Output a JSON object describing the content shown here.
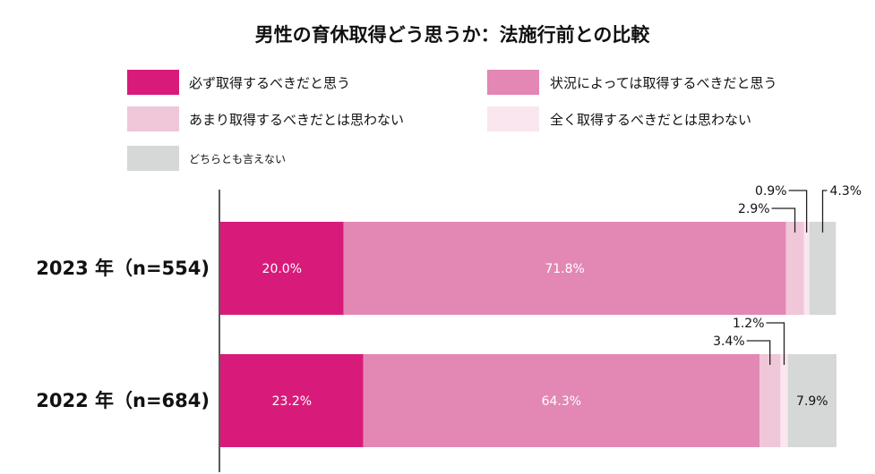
{
  "chart_data": {
    "type": "bar",
    "orientation": "horizontal",
    "stacked": true,
    "title": "男性の育休取得どう思うか：法施行前との比較",
    "categories": [
      "2023 年（n=554)",
      "2022 年（n=684)"
    ],
    "series": [
      {
        "name": "必ず取得するべきだと思う",
        "color": "#d81b7a",
        "values": [
          20.0,
          23.2
        ],
        "labels": [
          "20.0%",
          "23.2%"
        ]
      },
      {
        "name": "状況によっては取得するべきだと思う",
        "color": "#e387b4",
        "values": [
          71.8,
          64.3
        ],
        "labels": [
          "71.8%",
          "64.3%"
        ]
      },
      {
        "name": "あまり取得するべきだとは思わない",
        "color": "#f0c6d9",
        "values": [
          2.9,
          3.4
        ],
        "labels": [
          "2.9%",
          "3.4%"
        ]
      },
      {
        "name": "全く取得するべきだとは思わない",
        "color": "#f9e6ee",
        "values": [
          0.9,
          1.2
        ],
        "labels": [
          "0.9%",
          "1.2%"
        ]
      },
      {
        "name": "どちらとも言えない",
        "color": "#d6d7d7",
        "values": [
          4.3,
          7.9
        ],
        "labels": [
          "4.3%",
          "7.9%"
        ]
      }
    ],
    "xlim": [
      0,
      100
    ],
    "legend_position": "top",
    "grid": false
  }
}
